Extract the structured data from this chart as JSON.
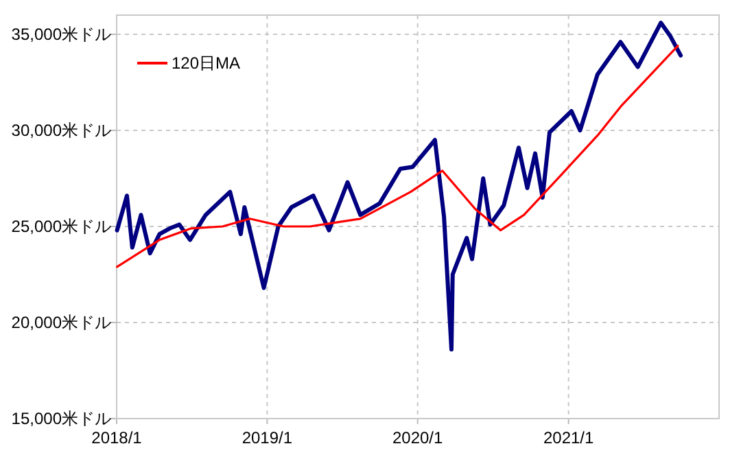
{
  "chart_data": {
    "type": "line",
    "xlim": [
      "2018-01-01",
      "2022-01-01"
    ],
    "xticks": [
      {
        "value": "2018-01-01",
        "label": "2018/1"
      },
      {
        "value": "2019-01-01",
        "label": "2019/1"
      },
      {
        "value": "2020-01-01",
        "label": "2020/1"
      },
      {
        "value": "2021-01-01",
        "label": "2021/1"
      }
    ],
    "ylim": [
      15000,
      36000
    ],
    "yticks": [
      {
        "value": 15000,
        "label": "15,000米ドル"
      },
      {
        "value": 20000,
        "label": "20,000米ドル"
      },
      {
        "value": 25000,
        "label": "25,000米ドル"
      },
      {
        "value": 30000,
        "label": "30,000米ドル"
      },
      {
        "value": 35000,
        "label": "35,000米ドル"
      }
    ],
    "grid": true,
    "legend": "top left",
    "line_style": "solid",
    "series": [
      {
        "color": "#000080",
        "x": [
          "2018-01-02",
          "2018-01-26",
          "2018-02-08",
          "2018-03-01",
          "2018-03-23",
          "2018-04-15",
          "2018-05-10",
          "2018-06-02",
          "2018-06-28",
          "2018-08-05",
          "2018-10-03",
          "2018-10-29",
          "2018-11-07",
          "2018-12-24",
          "2019-01-28",
          "2019-03-01",
          "2019-04-23",
          "2019-05-31",
          "2019-07-15",
          "2019-08-15",
          "2019-10-01",
          "2019-11-20",
          "2019-12-20",
          "2020-02-12",
          "2020-03-05",
          "2020-03-23",
          "2020-03-26",
          "2020-04-29",
          "2020-05-12",
          "2020-06-08",
          "2020-06-25",
          "2020-07-28",
          "2020-09-02",
          "2020-09-23",
          "2020-10-12",
          "2020-10-30",
          "2020-11-16",
          "2021-01-08",
          "2021-01-29",
          "2021-03-12",
          "2021-05-07",
          "2021-06-18",
          "2021-08-13",
          "2021-09-05",
          "2021-09-30"
        ],
        "values": [
          24800,
          26600,
          23900,
          25600,
          23600,
          24600,
          24900,
          25100,
          24300,
          25600,
          26800,
          24600,
          26000,
          21800,
          25000,
          26000,
          26600,
          24800,
          27300,
          25600,
          26200,
          28000,
          28100,
          29500,
          25500,
          18600,
          22500,
          24400,
          23300,
          27500,
          25100,
          26100,
          29100,
          27000,
          28800,
          26500,
          29900,
          31000,
          30000,
          32900,
          34600,
          33300,
          35600,
          34900,
          33900
        ]
      },
      {
        "name": "120日MA",
        "color": "#ff0000",
        "x": [
          "2018-01-02",
          "2018-04-15",
          "2018-07-01",
          "2018-09-15",
          "2018-11-20",
          "2019-02-10",
          "2019-04-15",
          "2019-06-15",
          "2019-08-15",
          "2019-12-15",
          "2020-03-01",
          "2020-05-20",
          "2020-07-20",
          "2020-09-15",
          "2020-12-15",
          "2021-03-15",
          "2021-05-10",
          "2021-09-23"
        ],
        "values": [
          22900,
          24300,
          24900,
          25000,
          25400,
          25000,
          25000,
          25200,
          25400,
          26800,
          27900,
          25900,
          24800,
          25600,
          27700,
          29800,
          31300,
          34400
        ]
      }
    ]
  }
}
